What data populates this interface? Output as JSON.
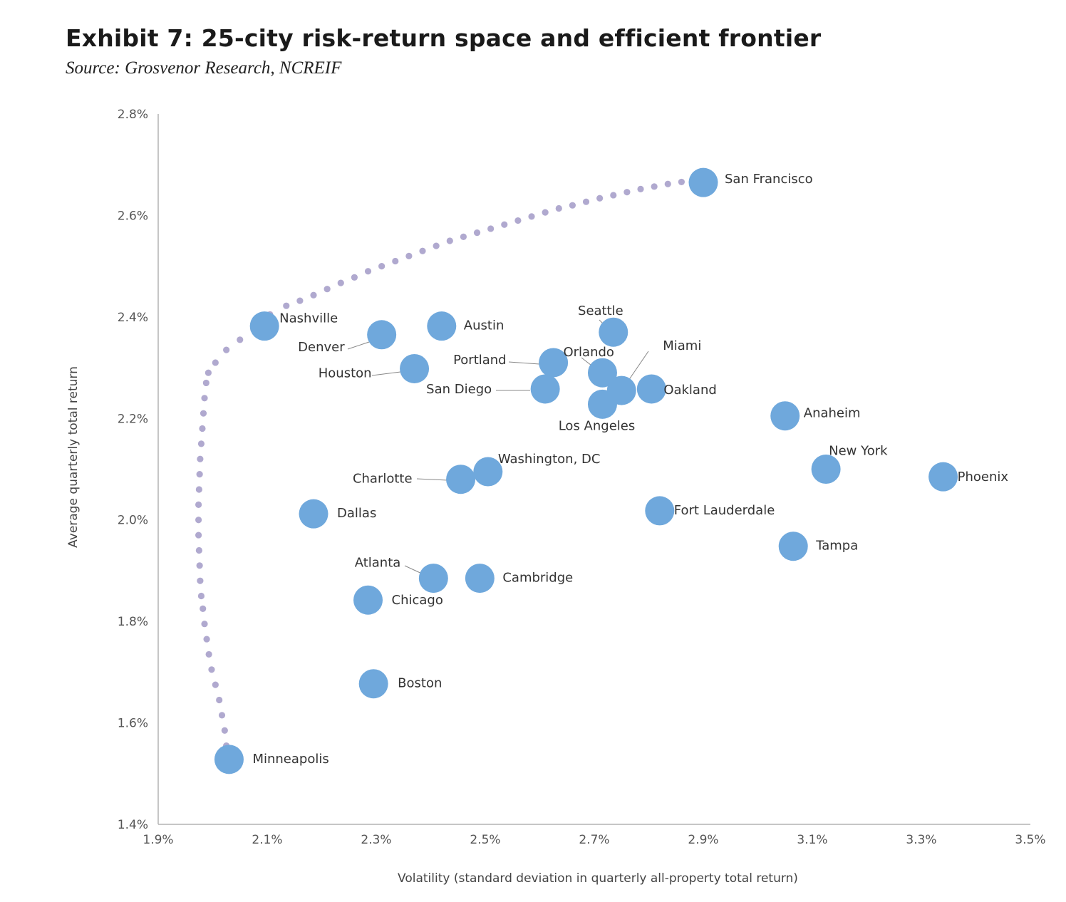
{
  "title": "Exhibit 7: 25-city risk-return space and efficient frontier",
  "subtitle": "Source: Grosvenor Research, NCREIF",
  "chart_data": {
    "type": "scatter",
    "xlabel": "Volatility (standard deviation  in quarterly all-property total return)",
    "ylabel": "Average quarterly total return",
    "xlim": [
      1.9,
      3.5
    ],
    "ylim": [
      1.4,
      2.8
    ],
    "x_ticks": [
      "1.9%",
      "2.1%",
      "2.3%",
      "2.5%",
      "2.7%",
      "2.9%",
      "3.1%",
      "3.3%",
      "3.5%"
    ],
    "y_ticks": [
      "1.4%",
      "1.6%",
      "1.8%",
      "2.0%",
      "2.2%",
      "2.4%",
      "2.6%",
      "2.8%"
    ],
    "grid": false,
    "colors": {
      "points": "#6fa8dc",
      "frontier": "#b0a9cf",
      "axis": "#b3b3b3",
      "leader": "#888888"
    },
    "points": [
      {
        "label": "San Francisco",
        "x": 2.9,
        "y": 2.665
      },
      {
        "label": "Nashville",
        "x": 2.095,
        "y": 2.382
      },
      {
        "label": "Denver",
        "x": 2.31,
        "y": 2.365
      },
      {
        "label": "Austin",
        "x": 2.42,
        "y": 2.382
      },
      {
        "label": "Seattle",
        "x": 2.735,
        "y": 2.37
      },
      {
        "label": "Houston",
        "x": 2.37,
        "y": 2.298
      },
      {
        "label": "Portland",
        "x": 2.625,
        "y": 2.31
      },
      {
        "label": "Orlando",
        "x": 2.715,
        "y": 2.29
      },
      {
        "label": "Miami",
        "x": 2.75,
        "y": 2.255
      },
      {
        "label": "San Diego",
        "x": 2.61,
        "y": 2.258
      },
      {
        "label": "Oakland",
        "x": 2.805,
        "y": 2.258
      },
      {
        "label": "Los Angeles",
        "x": 2.715,
        "y": 2.228
      },
      {
        "label": "Anaheim",
        "x": 3.05,
        "y": 2.205
      },
      {
        "label": "New York",
        "x": 3.125,
        "y": 2.1
      },
      {
        "label": "Phoenix",
        "x": 3.34,
        "y": 2.085
      },
      {
        "label": "Washington, DC",
        "x": 2.505,
        "y": 2.095
      },
      {
        "label": "Charlotte",
        "x": 2.455,
        "y": 2.08
      },
      {
        "label": "Dallas",
        "x": 2.185,
        "y": 2.012
      },
      {
        "label": "Fort Lauderdale",
        "x": 2.82,
        "y": 2.018
      },
      {
        "label": "Tampa",
        "x": 3.065,
        "y": 1.948
      },
      {
        "label": "Atlanta",
        "x": 2.405,
        "y": 1.885
      },
      {
        "label": "Cambridge",
        "x": 2.49,
        "y": 1.885
      },
      {
        "label": "Chicago",
        "x": 2.285,
        "y": 1.842
      },
      {
        "label": "Boston",
        "x": 2.295,
        "y": 1.677
      },
      {
        "label": "Minneapolis",
        "x": 2.03,
        "y": 1.528
      }
    ],
    "frontier": [
      [
        2.025,
        1.555
      ],
      [
        2.022,
        1.585
      ],
      [
        2.017,
        1.615
      ],
      [
        2.012,
        1.645
      ],
      [
        2.005,
        1.675
      ],
      [
        1.998,
        1.705
      ],
      [
        1.993,
        1.735
      ],
      [
        1.989,
        1.765
      ],
      [
        1.985,
        1.795
      ],
      [
        1.982,
        1.825
      ],
      [
        1.979,
        1.85
      ],
      [
        1.977,
        1.88
      ],
      [
        1.976,
        1.91
      ],
      [
        1.975,
        1.94
      ],
      [
        1.974,
        1.97
      ],
      [
        1.974,
        2.0
      ],
      [
        1.974,
        2.03
      ],
      [
        1.975,
        2.06
      ],
      [
        1.976,
        2.09
      ],
      [
        1.977,
        2.12
      ],
      [
        1.979,
        2.15
      ],
      [
        1.981,
        2.18
      ],
      [
        1.983,
        2.21
      ],
      [
        1.985,
        2.24
      ],
      [
        1.988,
        2.27
      ],
      [
        1.992,
        2.29
      ],
      [
        2.005,
        2.31
      ],
      [
        2.025,
        2.335
      ],
      [
        2.05,
        2.355
      ],
      [
        2.075,
        2.375
      ],
      [
        2.105,
        2.405
      ],
      [
        2.135,
        2.422
      ],
      [
        2.16,
        2.432
      ],
      [
        2.185,
        2.443
      ],
      [
        2.21,
        2.455
      ],
      [
        2.235,
        2.467
      ],
      [
        2.26,
        2.478
      ],
      [
        2.285,
        2.49
      ],
      [
        2.31,
        2.5
      ],
      [
        2.335,
        2.51
      ],
      [
        2.36,
        2.52
      ],
      [
        2.385,
        2.53
      ],
      [
        2.41,
        2.54
      ],
      [
        2.435,
        2.55
      ],
      [
        2.46,
        2.558
      ],
      [
        2.485,
        2.566
      ],
      [
        2.51,
        2.574
      ],
      [
        2.535,
        2.582
      ],
      [
        2.56,
        2.59
      ],
      [
        2.585,
        2.598
      ],
      [
        2.61,
        2.606
      ],
      [
        2.635,
        2.614
      ],
      [
        2.66,
        2.62
      ],
      [
        2.685,
        2.627
      ],
      [
        2.71,
        2.634
      ],
      [
        2.735,
        2.64
      ],
      [
        2.76,
        2.646
      ],
      [
        2.785,
        2.652
      ],
      [
        2.81,
        2.657
      ],
      [
        2.835,
        2.662
      ],
      [
        2.86,
        2.666
      ],
      [
        2.885,
        2.669
      ]
    ]
  }
}
